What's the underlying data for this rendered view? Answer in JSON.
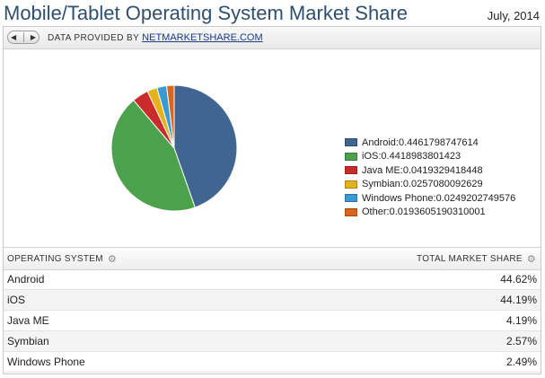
{
  "header": {
    "title": "Mobile/Tablet Operating System Market Share",
    "date": "July, 2014"
  },
  "toolbar": {
    "prev_icon": "chevron-left-icon",
    "next_icon": "chevron-right-icon",
    "provided_by": "DATA PROVIDED BY",
    "source_link": "NETMARKETSHARE.COM"
  },
  "chart_data": {
    "type": "pie",
    "categories": [
      "Android",
      "iOS",
      "Java ME",
      "Symbian",
      "Windows Phone",
      "Other"
    ],
    "values": [
      0.4461798747614,
      0.4418983801423,
      0.0419329418448,
      0.0257080092629,
      0.0249202749576,
      0.0193605190310001
    ],
    "value_labels": [
      "0.4461798747614",
      "0.4418983801423",
      "0.0419329418448",
      "0.0257080092629",
      "0.0249202749576",
      "0.0193605190310001"
    ],
    "colors": [
      "#3f6590",
      "#4ca24c",
      "#cc2b2b",
      "#e5b21a",
      "#3a9ad4",
      "#d9661c"
    ],
    "legend_position": "right"
  },
  "table": {
    "headers": [
      "OPERATING SYSTEM",
      "TOTAL MARKET SHARE"
    ],
    "header_icons": [
      "gear-icon",
      "gear-icon"
    ],
    "rows": [
      [
        "Android",
        "44.62%"
      ],
      [
        "iOS",
        "44.19%"
      ],
      [
        "Java ME",
        "4.19%"
      ],
      [
        "Symbian",
        "2.57%"
      ],
      [
        "Windows Phone",
        "2.49%"
      ]
    ]
  }
}
